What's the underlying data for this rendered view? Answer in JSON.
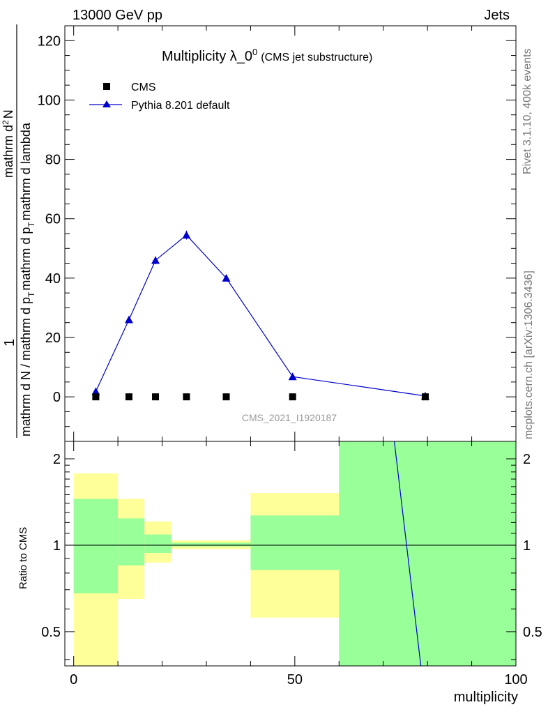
{
  "header": {
    "left": "13000 GeV pp",
    "right": "Jets"
  },
  "side_text": {
    "rivet": "Rivet 3.1.10,  400k events",
    "source": "mcplots.cern.ch [arXiv:1306.3436]"
  },
  "chart_data": [
    {
      "type": "line",
      "title": "Multiplicity λ_0",
      "title_sup": "0",
      "title_suffix": "(CMS jet substructure)",
      "ylabel_numerator": "1",
      "ylabel_denominator": "mathrm d N / mathrm d p",
      "ylabel_denominator_sub": "T",
      "ylabel_denominator_rest": "mathrm d p",
      "ylabel_denominator_rest_sub": "T",
      "ylabel_denominator_end": "mathrm d lambda",
      "ylabel_top": "mathrm d",
      "ylabel_top_sup": "2",
      "ylabel_top_end": "N",
      "watermark": "CMS_2021_I1920187",
      "xlim": [
        -2,
        100
      ],
      "ylim": [
        -15,
        125
      ],
      "yticks": [
        0,
        20,
        40,
        60,
        80,
        100,
        120
      ],
      "ytick_labels": [
        "0",
        "20",
        "40",
        "60",
        "80",
        "100",
        "120"
      ],
      "series": [
        {
          "name": "CMS",
          "marker": "square",
          "color": "#000000",
          "x": [
            5,
            12.5,
            18.5,
            25.5,
            34.5,
            49.5,
            79.5
          ],
          "y": [
            0,
            0,
            0,
            0,
            0,
            0,
            0
          ]
        },
        {
          "name": "Pythia 8.201 default",
          "marker": "triangle",
          "color": "#0000cc",
          "x": [
            5,
            12.5,
            18.5,
            25.5,
            34.5,
            49.5,
            79.5
          ],
          "y": [
            1.8,
            26,
            46,
            54.5,
            40,
            6.8,
            0.3
          ],
          "yerr": [
            0.3,
            0.8,
            1.3,
            1.5,
            1.0,
            0.3,
            0.05
          ]
        }
      ]
    },
    {
      "type": "area",
      "ylabel": "Ratio to CMS",
      "xlabel": "multiplicity",
      "scale": "log",
      "xlim": [
        -2,
        100
      ],
      "ylim": [
        0.38,
        2.3
      ],
      "xticks": [
        0,
        50,
        100
      ],
      "xtick_labels": [
        "0",
        "50",
        "100"
      ],
      "yticks": [
        0.5,
        1,
        2
      ],
      "ytick_labels": [
        "0.5",
        "1",
        "2"
      ],
      "bands": {
        "bins": [
          [
            0,
            10
          ],
          [
            10,
            16
          ],
          [
            16,
            22
          ],
          [
            22,
            30
          ],
          [
            30,
            40
          ],
          [
            40,
            60
          ],
          [
            60,
            100
          ]
        ],
        "green_hi": [
          1.45,
          1.24,
          1.09,
          1.02,
          1.02,
          1.27,
          2.3
        ],
        "green_lo": [
          0.68,
          0.85,
          0.94,
          0.99,
          0.99,
          0.82,
          0.38
        ],
        "yellow_hi": [
          1.78,
          1.45,
          1.21,
          1.04,
          1.04,
          1.52,
          2.3
        ],
        "yellow_lo": [
          0.38,
          0.65,
          0.87,
          0.97,
          0.97,
          0.56,
          0.38
        ],
        "green_color": "#99ff99",
        "yellow_color": "#ffff99"
      },
      "ratio_line": {
        "color": "#0000cc",
        "x": [
          72.5,
          78.5
        ],
        "y": [
          2.3,
          0.38
        ]
      }
    }
  ]
}
